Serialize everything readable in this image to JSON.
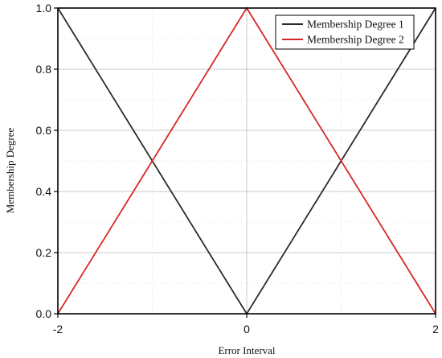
{
  "chart_data": {
    "type": "line",
    "title": "",
    "xlabel": "Error Interval",
    "ylabel": "Membership Degree",
    "xlim": [
      -2,
      2
    ],
    "ylim": [
      0,
      1
    ],
    "x_ticks": [
      "-2",
      "0",
      "2"
    ],
    "y_ticks": [
      "0.0",
      "0.2",
      "0.4",
      "0.6",
      "0.8",
      "1.0"
    ],
    "grid": true,
    "legend_position": "top-right",
    "series": [
      {
        "name": "Membership Degree 1",
        "color": "#2b2b2b",
        "x": [
          -2,
          0,
          2
        ],
        "y": [
          1.0,
          0.0,
          1.0
        ]
      },
      {
        "name": "Membership Degree 2",
        "color": "#d62728",
        "x": [
          -2,
          0,
          2
        ],
        "y": [
          0.0,
          1.0,
          0.0
        ]
      }
    ]
  }
}
